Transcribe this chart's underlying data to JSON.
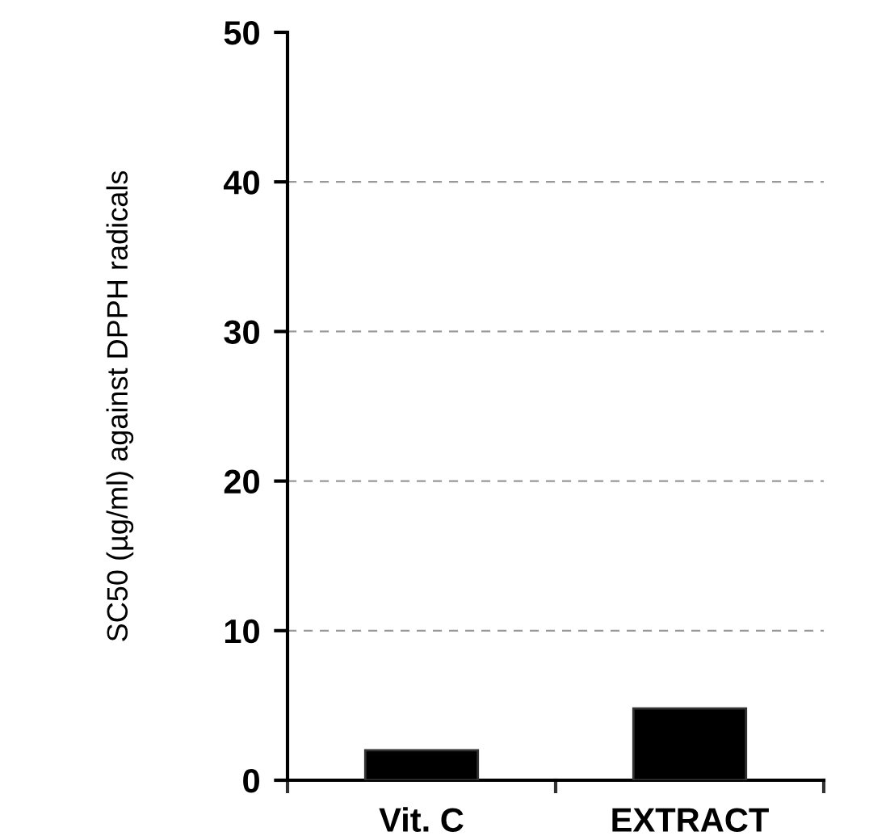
{
  "chart_data": {
    "type": "bar",
    "ylabel": "SC50 (µg/ml) against DPPH radicals",
    "categories": [
      "Vit. C",
      "EXTRACT"
    ],
    "values": [
      2.0,
      4.8
    ],
    "color": "#000000",
    "ylim": [
      0,
      50
    ],
    "yticks": [
      0,
      10,
      20,
      30,
      40,
      50
    ],
    "grid": "y"
  }
}
